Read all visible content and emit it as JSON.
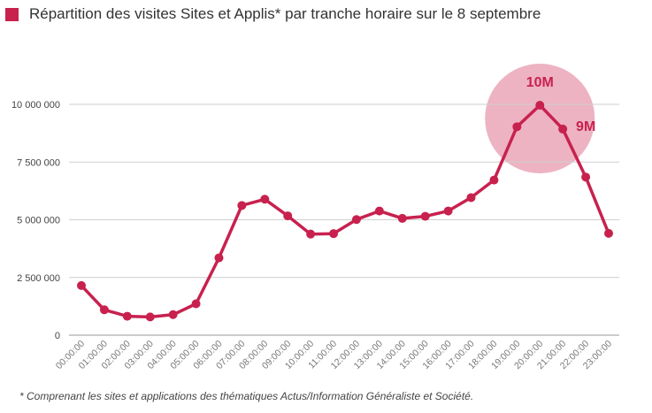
{
  "colors": {
    "series": "#c8214e",
    "highlight": "#eaa6b8",
    "grid": "#cfcfcf",
    "axis": "#999999"
  },
  "chart_data": {
    "type": "line",
    "title": "Répartition des visites Sites et Applis* par tranche horaire sur le 8 septembre",
    "xlabel": "",
    "ylabel": "",
    "ylim": [
      0,
      10000000
    ],
    "yticks": [
      0,
      2500000,
      5000000,
      7500000,
      10000000
    ],
    "ytick_labels": [
      "0",
      "2 500 000",
      "5 000 000",
      "7 500 000",
      "10 000 000"
    ],
    "grid": true,
    "categories": [
      "00:00:00",
      "01:00:00",
      "02:00:00",
      "03:00:00",
      "04:00:00",
      "05:00:00",
      "06:00:00",
      "07:00:00",
      "08:00:00",
      "09:00:00",
      "10:00:00",
      "11:00:00",
      "12:00:00",
      "13:00:00",
      "14:00:00",
      "15:00:00",
      "16:00:00",
      "17:00:00",
      "18:00:00",
      "19:00:00",
      "20:00:00",
      "21:00:00",
      "22:00:00",
      "23:00:00"
    ],
    "series": [
      {
        "values": [
          2150000,
          1100000,
          820000,
          790000,
          890000,
          1360000,
          3350000,
          5620000,
          5890000,
          5170000,
          4380000,
          4400000,
          5010000,
          5380000,
          5060000,
          5150000,
          5380000,
          5960000,
          6720000,
          9030000,
          9960000,
          8930000,
          6850000,
          4410000
        ]
      }
    ],
    "annotations": [
      {
        "text": "10M",
        "x": "20:00:00"
      },
      {
        "text": "9M",
        "x": "21:00:00"
      }
    ]
  },
  "footnote": "* Comprenant les sites et applications des thématiques Actus/Information Généraliste et Société."
}
